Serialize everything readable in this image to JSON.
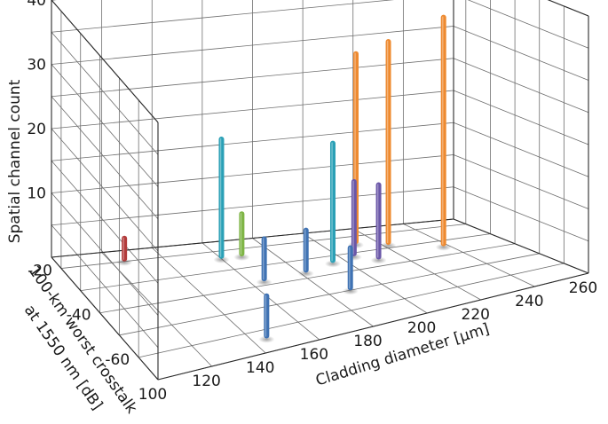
{
  "chart_data": {
    "type": "bar3d",
    "title": "",
    "xlabel": "Cladding diameter [µm]",
    "ylabel": "100-km worst crosstalk at 1550 nm [dB]",
    "ylabel_lines": [
      "100-km worst crosstalk",
      "at 1550 nm [dB]"
    ],
    "zlabel": "Spatial channel count",
    "xlim": [
      100,
      260
    ],
    "ylim": [
      -70,
      -15
    ],
    "zlim": [
      0,
      40
    ],
    "x_ticks": [
      100,
      120,
      140,
      160,
      180,
      200,
      220,
      240,
      260
    ],
    "y_ticks": [
      -20,
      -40,
      -60
    ],
    "z_ticks": [
      10,
      20,
      30,
      40
    ],
    "grid": true,
    "series": [
      {
        "color": "#b23b3b",
        "points": [
          {
            "x": 125,
            "y": -20,
            "z": 4
          }
        ]
      },
      {
        "color": "#3f72b3",
        "points": [
          {
            "x": 145,
            "y": -64,
            "z": 7
          },
          {
            "x": 165,
            "y": -38,
            "z": 7
          },
          {
            "x": 182,
            "y": -37,
            "z": 7
          },
          {
            "x": 188,
            "y": -50,
            "z": 7
          }
        ]
      },
      {
        "color": "#2aa0b6",
        "points": [
          {
            "x": 160,
            "y": -24,
            "z": 19
          },
          {
            "x": 195,
            "y": -34,
            "z": 19
          }
        ]
      },
      {
        "color": "#7fb546",
        "points": [
          {
            "x": 168,
            "y": -24,
            "z": 7
          }
        ]
      },
      {
        "color": "#6a57a8",
        "points": [
          {
            "x": 205,
            "y": -32,
            "z": 12
          },
          {
            "x": 211,
            "y": -36,
            "z": 12
          }
        ]
      },
      {
        "color": "#ee8a30",
        "points": [
          {
            "x": 212,
            "y": -25,
            "z": 30
          },
          {
            "x": 222,
            "y": -28,
            "z": 32
          },
          {
            "x": 238,
            "y": -34,
            "z": 36
          }
        ]
      }
    ]
  }
}
